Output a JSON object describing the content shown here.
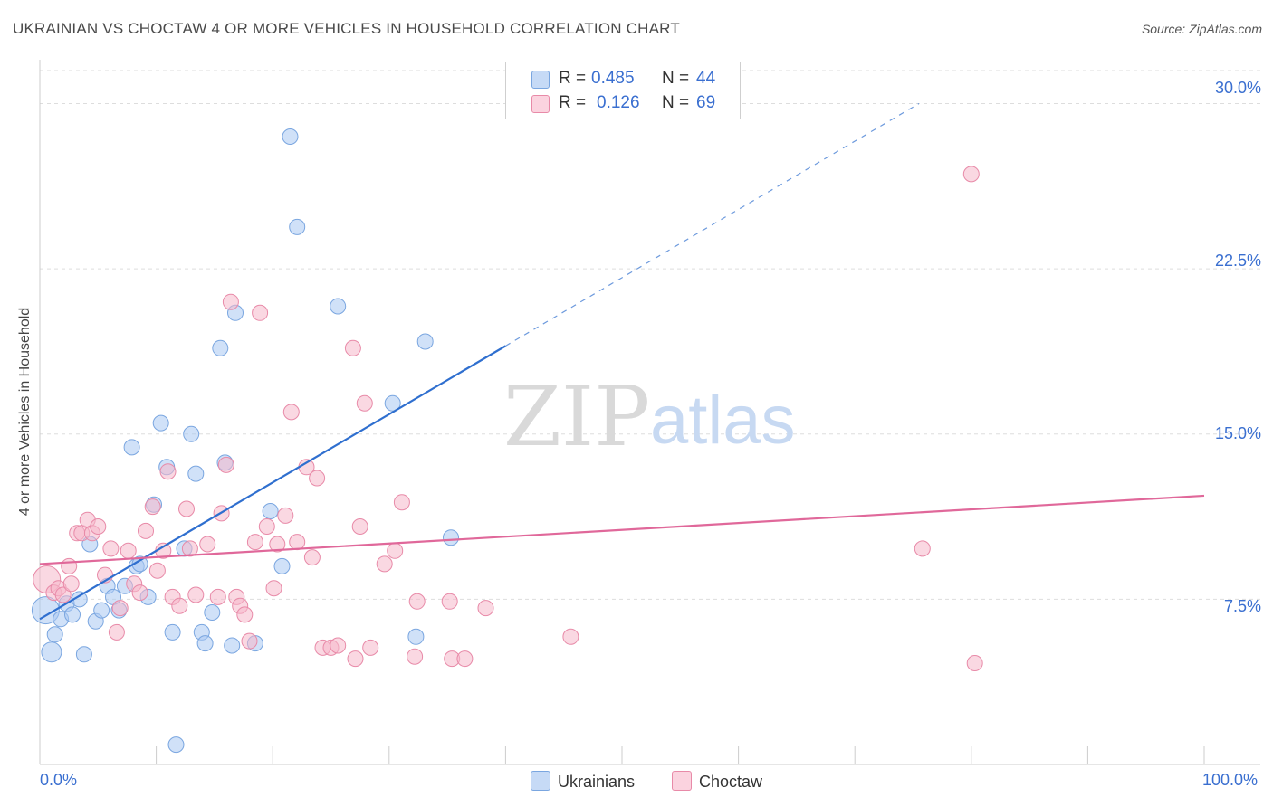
{
  "title": "UKRAINIAN VS CHOCTAW 4 OR MORE VEHICLES IN HOUSEHOLD CORRELATION CHART",
  "source": "Source: ZipAtlas.com",
  "watermark": {
    "zip": "ZIP",
    "atlas": "atlas"
  },
  "legend": {
    "rows": [
      {
        "r_label": "R =",
        "r_value": "0.485",
        "n_label": "N =",
        "n_value": "44",
        "color": "#aac8f2"
      },
      {
        "r_label": "R =",
        "r_value": "0.126",
        "n_label": "N =",
        "n_value": "69",
        "color": "#f5b8cb"
      }
    ]
  },
  "chart_data": {
    "type": "scatter",
    "title": "UKRAINIAN VS CHOCTAW 4 OR MORE VEHICLES IN HOUSEHOLD CORRELATION CHART",
    "xlabel": "",
    "ylabel": "4 or more Vehicles in Household",
    "xlim": [
      0,
      100
    ],
    "ylim": [
      0,
      31.5
    ],
    "x_tick_labels": [
      "0.0%",
      "100.0%"
    ],
    "y_ticks": [
      7.5,
      15.0,
      22.5,
      30.0
    ],
    "y_tick_labels": [
      "7.5%",
      "15.0%",
      "22.5%",
      "30.0%"
    ],
    "grid": true,
    "series": [
      {
        "name": "Ukrainians",
        "color": "#aac8f2",
        "stroke": "#7aa6e0",
        "line_color": "#2f6fcf",
        "trend": {
          "x0": 0,
          "y0": 6.6,
          "x1": 40,
          "y1": 19.0,
          "dash_to_x": 75.5,
          "dash_to_y": 30.0
        },
        "points": [
          [
            0.5,
            7.0
          ],
          [
            1.0,
            5.1
          ],
          [
            1.3,
            5.9
          ],
          [
            1.8,
            6.6
          ],
          [
            2.3,
            7.3
          ],
          [
            2.8,
            6.8
          ],
          [
            3.4,
            7.5
          ],
          [
            3.8,
            5.0
          ],
          [
            4.3,
            10.0
          ],
          [
            4.8,
            6.5
          ],
          [
            5.3,
            7.0
          ],
          [
            5.8,
            8.1
          ],
          [
            6.3,
            7.6
          ],
          [
            6.8,
            7.0
          ],
          [
            7.3,
            8.1
          ],
          [
            7.9,
            14.4
          ],
          [
            8.3,
            9.0
          ],
          [
            8.6,
            9.1
          ],
          [
            9.3,
            7.6
          ],
          [
            9.8,
            11.8
          ],
          [
            10.4,
            15.5
          ],
          [
            10.9,
            13.5
          ],
          [
            11.4,
            6.0
          ],
          [
            11.7,
            0.9
          ],
          [
            12.4,
            9.8
          ],
          [
            13.0,
            15.0
          ],
          [
            13.4,
            13.2
          ],
          [
            13.9,
            6.0
          ],
          [
            14.2,
            5.5
          ],
          [
            14.8,
            6.9
          ],
          [
            15.5,
            18.9
          ],
          [
            15.9,
            13.7
          ],
          [
            16.5,
            5.4
          ],
          [
            16.8,
            20.5
          ],
          [
            18.5,
            5.5
          ],
          [
            19.8,
            11.5
          ],
          [
            20.8,
            9.0
          ],
          [
            21.5,
            28.5
          ],
          [
            22.1,
            24.4
          ],
          [
            25.6,
            20.8
          ],
          [
            30.3,
            16.4
          ],
          [
            32.3,
            5.8
          ],
          [
            33.1,
            19.2
          ],
          [
            35.3,
            10.3
          ]
        ]
      },
      {
        "name": "Choctaw",
        "color": "#f5b8cb",
        "stroke": "#e88aa8",
        "line_color": "#e0689a",
        "trend": {
          "x0": 0,
          "y0": 9.1,
          "x1": 100,
          "y1": 12.2
        },
        "points": [
          [
            0.6,
            8.4
          ],
          [
            1.2,
            7.8
          ],
          [
            1.6,
            8.0
          ],
          [
            2.0,
            7.7
          ],
          [
            2.5,
            9.0
          ],
          [
            2.7,
            8.2
          ],
          [
            3.2,
            10.5
          ],
          [
            3.6,
            10.5
          ],
          [
            4.1,
            11.1
          ],
          [
            4.5,
            10.5
          ],
          [
            5.0,
            10.8
          ],
          [
            5.6,
            8.6
          ],
          [
            6.1,
            9.8
          ],
          [
            6.6,
            6.0
          ],
          [
            6.9,
            7.1
          ],
          [
            7.6,
            9.7
          ],
          [
            8.1,
            8.2
          ],
          [
            8.6,
            7.8
          ],
          [
            9.1,
            10.6
          ],
          [
            9.7,
            11.7
          ],
          [
            10.1,
            8.8
          ],
          [
            10.6,
            9.7
          ],
          [
            11.0,
            13.3
          ],
          [
            11.4,
            7.6
          ],
          [
            12.0,
            7.2
          ],
          [
            12.6,
            11.6
          ],
          [
            12.9,
            9.8
          ],
          [
            13.4,
            7.7
          ],
          [
            14.4,
            10.0
          ],
          [
            15.3,
            7.6
          ],
          [
            15.6,
            11.4
          ],
          [
            16.0,
            13.6
          ],
          [
            16.4,
            21.0
          ],
          [
            16.9,
            7.6
          ],
          [
            17.2,
            7.2
          ],
          [
            17.6,
            6.8
          ],
          [
            18.0,
            5.6
          ],
          [
            18.5,
            10.1
          ],
          [
            18.9,
            20.5
          ],
          [
            19.5,
            10.8
          ],
          [
            20.1,
            8.0
          ],
          [
            20.4,
            10.0
          ],
          [
            21.1,
            11.3
          ],
          [
            21.6,
            16.0
          ],
          [
            22.1,
            10.1
          ],
          [
            22.9,
            13.5
          ],
          [
            23.4,
            9.4
          ],
          [
            23.8,
            13.0
          ],
          [
            24.3,
            5.3
          ],
          [
            25.0,
            5.3
          ],
          [
            25.6,
            5.4
          ],
          [
            26.9,
            18.9
          ],
          [
            27.1,
            4.8
          ],
          [
            27.5,
            10.8
          ],
          [
            27.9,
            16.4
          ],
          [
            28.4,
            5.3
          ],
          [
            29.6,
            9.1
          ],
          [
            30.5,
            9.7
          ],
          [
            31.1,
            11.9
          ],
          [
            32.2,
            4.9
          ],
          [
            32.4,
            7.4
          ],
          [
            35.2,
            7.4
          ],
          [
            35.4,
            4.8
          ],
          [
            36.5,
            4.8
          ],
          [
            38.3,
            7.1
          ],
          [
            45.6,
            5.8
          ],
          [
            75.8,
            9.8
          ],
          [
            80.0,
            26.8
          ],
          [
            80.3,
            4.6
          ]
        ]
      }
    ]
  },
  "x_axis": {
    "left_label": "0.0%",
    "right_label": "100.0%"
  },
  "bottom_legend": {
    "items": [
      "Ukrainians",
      "Choctaw"
    ]
  }
}
